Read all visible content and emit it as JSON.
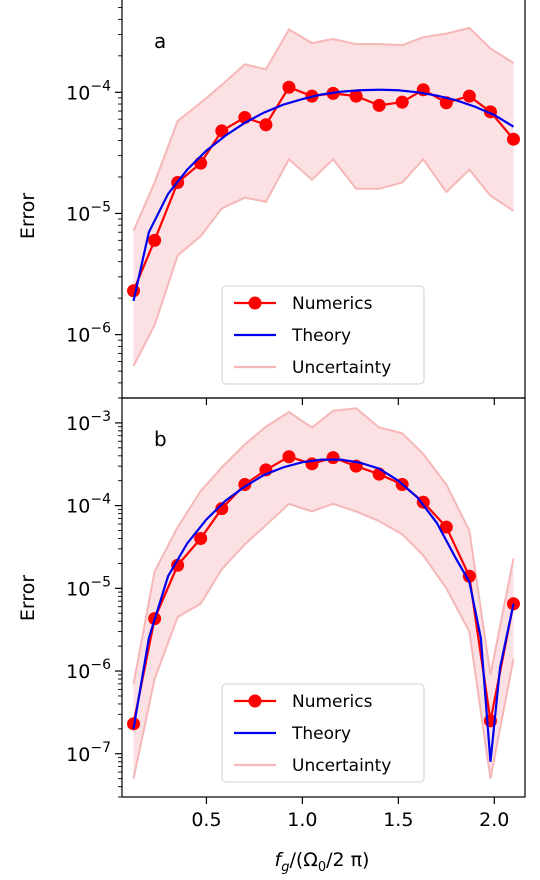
{
  "chart_data": [
    {
      "type": "line",
      "panel_label": "a",
      "ylabel": "Error",
      "yscale": "log",
      "ylim": [
        3e-07,
        0.0006
      ],
      "xlim": [
        0.06,
        2.16
      ],
      "y_tick_labels": [
        {
          "base": "10",
          "exp": "−4",
          "value": 0.0001
        },
        {
          "base": "10",
          "exp": "−5",
          "value": 1e-05
        },
        {
          "base": "10",
          "exp": "−6",
          "value": 1e-06
        }
      ],
      "legend": {
        "position": "lower center",
        "entries": [
          "Numerics",
          "Theory",
          "Uncertainty"
        ]
      },
      "colors": {
        "numerics": "#ff0000",
        "theory": "#0000ee",
        "uncertainty_line": "#f5b7b7",
        "uncertainty_fill": "#fbe0e4"
      },
      "series": [
        {
          "name": "Numerics",
          "style": "line-marker",
          "x": [
            0.12,
            0.23,
            0.35,
            0.47,
            0.58,
            0.7,
            0.81,
            0.93,
            1.05,
            1.16,
            1.28,
            1.4,
            1.52,
            1.63,
            1.75,
            1.87,
            1.98,
            2.1
          ],
          "y": [
            2.3e-06,
            6e-06,
            1.8e-05,
            2.6e-05,
            4.8e-05,
            6.2e-05,
            5.4e-05,
            0.00011,
            9.3e-05,
            9.8e-05,
            9.3e-05,
            7.8e-05,
            8.3e-05,
            0.000105,
            8.2e-05,
            9.3e-05,
            6.9e-05,
            4.1e-05
          ]
        },
        {
          "name": "Theory",
          "style": "line",
          "x": [
            0.12,
            0.2,
            0.3,
            0.4,
            0.5,
            0.6,
            0.7,
            0.8,
            0.9,
            1.0,
            1.1,
            1.2,
            1.3,
            1.4,
            1.5,
            1.6,
            1.7,
            1.8,
            1.9,
            2.0,
            2.1
          ],
          "y": [
            1.9e-06,
            7e-06,
            1.45e-05,
            2.3e-05,
            3.3e-05,
            4.4e-05,
            5.6e-05,
            6.8e-05,
            7.9e-05,
            8.8e-05,
            9.6e-05,
            0.000101,
            0.000104,
            0.000105,
            0.000104,
            0.0001,
            9.4e-05,
            8.6e-05,
            7.6e-05,
            6.5e-05,
            5.2e-05
          ]
        },
        {
          "name": "Uncertainty",
          "style": "band",
          "x": [
            0.12,
            0.23,
            0.35,
            0.47,
            0.58,
            0.7,
            0.81,
            0.93,
            1.05,
            1.16,
            1.28,
            1.4,
            1.52,
            1.63,
            1.75,
            1.87,
            1.98,
            2.1
          ],
          "lower": [
            5.5e-07,
            1.2e-06,
            4.5e-06,
            6.5e-06,
            1.1e-05,
            1.35e-05,
            1.25e-05,
            2.8e-05,
            1.9e-05,
            2.8e-05,
            1.6e-05,
            1.6e-05,
            1.8e-05,
            2.8e-05,
            1.5e-05,
            2.3e-05,
            1.4e-05,
            1.05e-05
          ],
          "upper": [
            7.2e-06,
            1.8e-05,
            5.8e-05,
            8.2e-05,
            0.000115,
            0.00017,
            0.000155,
            0.00033,
            0.000255,
            0.000275,
            0.00025,
            0.00025,
            0.000245,
            0.000285,
            0.000305,
            0.00034,
            0.00023,
            0.000175
          ]
        }
      ]
    },
    {
      "type": "line",
      "panel_label": "b",
      "ylabel": "Error",
      "xlabel": "f_g/(Ω_0/2π)",
      "yscale": "log",
      "ylim": [
        3e-08,
        0.002
      ],
      "xlim": [
        0.06,
        2.16
      ],
      "y_tick_labels": [
        {
          "base": "10",
          "exp": "−3",
          "value": 0.001
        },
        {
          "base": "10",
          "exp": "−4",
          "value": 0.0001
        },
        {
          "base": "10",
          "exp": "−5",
          "value": 1e-05
        },
        {
          "base": "10",
          "exp": "−6",
          "value": 1e-06
        },
        {
          "base": "10",
          "exp": "−7",
          "value": 1e-07
        }
      ],
      "x_tick_labels": [
        "0.5",
        "1.0",
        "1.5",
        "2.0"
      ],
      "x_tick_values": [
        0.5,
        1.0,
        1.5,
        2.0
      ],
      "legend": {
        "position": "lower center",
        "entries": [
          "Numerics",
          "Theory",
          "Uncertainty"
        ]
      },
      "colors": {
        "numerics": "#ff0000",
        "theory": "#0000ee",
        "uncertainty_line": "#f5b7b7",
        "uncertainty_fill": "#fbe0e4"
      },
      "series": [
        {
          "name": "Numerics",
          "style": "line-marker",
          "x": [
            0.12,
            0.23,
            0.35,
            0.47,
            0.58,
            0.7,
            0.81,
            0.93,
            1.05,
            1.16,
            1.28,
            1.4,
            1.52,
            1.63,
            1.75,
            1.87,
            1.98,
            2.1
          ],
          "y": [
            2.3e-07,
            4.3e-06,
            1.9e-05,
            4e-05,
            9.2e-05,
            0.00018,
            0.00027,
            0.00039,
            0.00032,
            0.00038,
            0.0003,
            0.00024,
            0.00018,
            0.00011,
            5.5e-05,
            1.4e-05,
            2.5e-07,
            6.5e-06
          ]
        },
        {
          "name": "Theory",
          "style": "line",
          "x": [
            0.12,
            0.2,
            0.3,
            0.4,
            0.5,
            0.6,
            0.7,
            0.8,
            0.9,
            1.0,
            1.1,
            1.2,
            1.3,
            1.4,
            1.5,
            1.6,
            1.7,
            1.8,
            1.87,
            1.93,
            1.98,
            2.03,
            2.1
          ],
          "y": [
            2e-07,
            2.5e-06,
            1.4e-05,
            3.5e-05,
            6.8e-05,
            0.000115,
            0.00017,
            0.000235,
            0.00029,
            0.000335,
            0.00036,
            0.00036,
            0.00033,
            0.00028,
            0.0002,
            0.000125,
            6.2e-05,
            2.3e-05,
            1.2e-05,
            2.5e-06,
            8e-08,
            1.1e-06,
            6.5e-06
          ]
        },
        {
          "name": "Uncertainty",
          "style": "band",
          "x": [
            0.12,
            0.23,
            0.35,
            0.47,
            0.58,
            0.7,
            0.81,
            0.93,
            1.05,
            1.16,
            1.28,
            1.4,
            1.52,
            1.63,
            1.75,
            1.87,
            1.98,
            2.1
          ],
          "lower": [
            5e-08,
            8e-07,
            4.5e-06,
            6.5e-06,
            1.7e-05,
            3.4e-05,
            5.8e-05,
            0.000105,
            8.5e-05,
            0.000105,
            8.5e-05,
            6.5e-05,
            4.5e-05,
            2.5e-05,
            1e-05,
            3e-06,
            5e-08,
            1.4e-06
          ],
          "upper": [
            7e-07,
            1.6e-05,
            5.5e-05,
            0.00015,
            0.00029,
            0.00055,
            0.0009,
            0.00135,
            0.00088,
            0.0014,
            0.0015,
            0.00088,
            0.00075,
            0.00042,
            0.00018,
            5e-05,
            9e-07,
            2.3e-05
          ]
        }
      ]
    }
  ]
}
